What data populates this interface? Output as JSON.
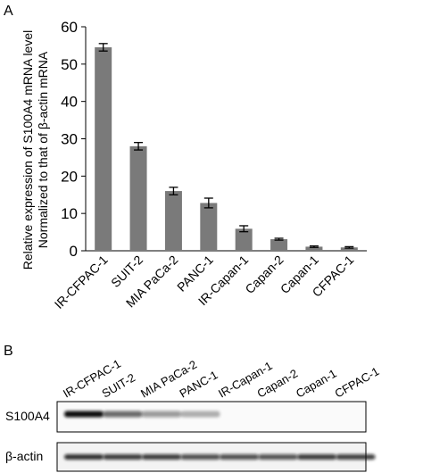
{
  "panel_a": {
    "letter": "A"
  },
  "panel_b": {
    "letter": "B",
    "lane_labels": [
      "IR-CFPAC-1",
      "SUIT-2",
      "MIA PaCa-2",
      "PANC-1",
      "IR-Capan-1",
      "Capan-2",
      "Capan-1",
      "CFPAC-1"
    ],
    "blots": [
      {
        "label": "S100A4",
        "intensity": [
          1.0,
          0.62,
          0.42,
          0.3,
          0.0,
          0.0,
          0.0,
          0.0
        ]
      },
      {
        "label": "β-actin",
        "intensity": [
          0.85,
          0.8,
          0.8,
          0.72,
          0.72,
          0.7,
          0.8,
          0.78
        ]
      }
    ]
  },
  "chart_data": {
    "type": "bar",
    "categories": [
      "IR-CFPAC-1",
      "SUIT-2",
      "MIA PaCa-2",
      "PANC-1",
      "IR-Capan-1",
      "Capan-2",
      "Capan-1",
      "CFPAC-1"
    ],
    "values": [
      54.5,
      28,
      16,
      12.8,
      5.9,
      3.1,
      1.1,
      0.9
    ],
    "errors": [
      1,
      1,
      1,
      1.3,
      0.8,
      0.25,
      0.2,
      0.2
    ],
    "ylabel_line1": "Relative expression of S100A4 mRNA level",
    "ylabel_line2": "Normalized to that of β-actin  mRNA",
    "ylim": [
      0,
      60
    ],
    "yticks": [
      0,
      10,
      20,
      30,
      40,
      50,
      60
    ],
    "grid": false,
    "bar_color": "#7a7a7a"
  }
}
